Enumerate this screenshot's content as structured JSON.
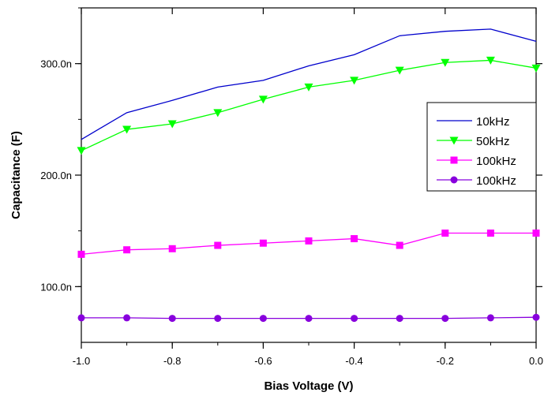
{
  "chart_data": {
    "type": "line",
    "title": "",
    "xlabel": "Bias Voltage (V)",
    "ylabel": "Capacitance (F)",
    "xlim": [
      -1.0,
      0.0
    ],
    "ylim": [
      50,
      350
    ],
    "x_ticks": [
      -1.0,
      -0.8,
      -0.6,
      -0.4,
      -0.2,
      0.0
    ],
    "x_tick_labels": [
      "-1.0",
      "-0.8",
      "-0.6",
      "-0.4",
      "-0.2",
      "0.0"
    ],
    "y_ticks": [
      100,
      200,
      300
    ],
    "y_tick_labels": [
      "100.0n",
      "200.0n",
      "300.0n"
    ],
    "y_unit_note": "values in nF",
    "grid": false,
    "legend_position": "right",
    "series": [
      {
        "name": "10kHz",
        "color": "#0000cc",
        "marker": "none",
        "x": [
          -1.0,
          -0.9,
          -0.8,
          -0.7,
          -0.6,
          -0.5,
          -0.4,
          -0.3,
          -0.2,
          -0.1,
          0.0
        ],
        "values": [
          232,
          256,
          267,
          279,
          285,
          298,
          308,
          325,
          329,
          331,
          320
        ]
      },
      {
        "name": "50kHz",
        "color": "#00ff00",
        "marker": "triangle-down",
        "x": [
          -1.0,
          -0.9,
          -0.8,
          -0.7,
          -0.6,
          -0.5,
          -0.4,
          -0.3,
          -0.2,
          -0.1,
          0.0
        ],
        "values": [
          222,
          241,
          246,
          256,
          268,
          279,
          285,
          294,
          301,
          303,
          296
        ]
      },
      {
        "name": "100kHz",
        "color": "#ff00ff",
        "marker": "square",
        "x": [
          -1.0,
          -0.9,
          -0.8,
          -0.7,
          -0.6,
          -0.5,
          -0.4,
          -0.3,
          -0.2,
          -0.1,
          0.0
        ],
        "values": [
          129,
          133,
          134,
          137,
          139,
          141,
          143,
          137,
          148,
          148,
          148
        ]
      },
      {
        "name": "100kHz",
        "color": "#8800dd",
        "marker": "circle",
        "x": [
          -1.0,
          -0.9,
          -0.8,
          -0.7,
          -0.6,
          -0.5,
          -0.4,
          -0.3,
          -0.2,
          -0.1,
          0.0
        ],
        "values": [
          72,
          72,
          71.5,
          71.5,
          71.5,
          71.5,
          71.5,
          71.5,
          71.5,
          72,
          72.5
        ]
      }
    ]
  }
}
